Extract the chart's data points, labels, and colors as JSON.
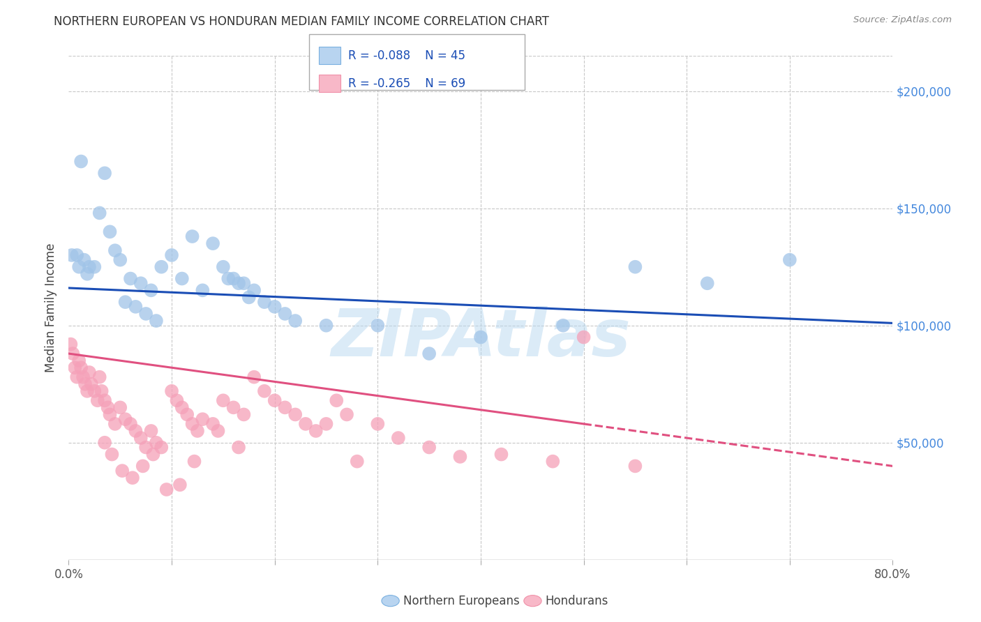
{
  "title": "NORTHERN EUROPEAN VS HONDURAN MEDIAN FAMILY INCOME CORRELATION CHART",
  "source": "Source: ZipAtlas.com",
  "ylabel": "Median Family Income",
  "yticks": [
    0,
    50000,
    100000,
    150000,
    200000
  ],
  "ytick_labels": [
    "",
    "$50,000",
    "$100,000",
    "$150,000",
    "$200,000"
  ],
  "xlim": [
    0.0,
    80.0
  ],
  "ylim": [
    0,
    215000
  ],
  "background_color": "#ffffff",
  "grid_color": "#c8c8c8",
  "watermark": "ZIPAtlas",
  "watermark_color": "#b8d8f0",
  "blue_color": "#a0c4e8",
  "blue_line_color": "#1a4db5",
  "pink_color": "#f5a0b8",
  "pink_line_color": "#e05080",
  "blue_line_x0": 0,
  "blue_line_y0": 116000,
  "blue_line_x1": 80,
  "blue_line_y1": 101000,
  "pink_line_x0": 0,
  "pink_line_y0": 88000,
  "pink_line_x1": 50,
  "pink_line_y1": 58000,
  "pink_dash_x0": 50,
  "pink_dash_y0": 58000,
  "pink_dash_x1": 80,
  "pink_dash_y1": 40000,
  "blue_x": [
    1.2,
    3.5,
    0.3,
    0.8,
    1.5,
    2.0,
    2.5,
    1.0,
    1.8,
    3.0,
    4.0,
    4.5,
    5.0,
    6.0,
    7.0,
    8.0,
    9.0,
    10.0,
    11.0,
    13.0,
    15.0,
    16.0,
    17.0,
    18.0,
    19.0,
    20.0,
    21.0,
    22.0,
    15.5,
    16.5,
    17.5,
    25.0,
    30.0,
    35.0,
    40.0,
    48.0,
    55.0,
    62.0,
    70.0,
    5.5,
    6.5,
    7.5,
    8.5,
    12.0,
    14.0
  ],
  "blue_y": [
    170000,
    165000,
    130000,
    130000,
    128000,
    125000,
    125000,
    125000,
    122000,
    148000,
    140000,
    132000,
    128000,
    120000,
    118000,
    115000,
    125000,
    130000,
    120000,
    115000,
    125000,
    120000,
    118000,
    115000,
    110000,
    108000,
    105000,
    102000,
    120000,
    118000,
    112000,
    100000,
    100000,
    88000,
    95000,
    100000,
    125000,
    118000,
    128000,
    110000,
    108000,
    105000,
    102000,
    138000,
    135000
  ],
  "pink_x": [
    0.2,
    0.4,
    0.6,
    0.8,
    1.0,
    1.2,
    1.4,
    1.6,
    1.8,
    2.0,
    2.2,
    2.5,
    2.8,
    3.0,
    3.2,
    3.5,
    3.8,
    4.0,
    4.5,
    5.0,
    5.5,
    6.0,
    6.5,
    7.0,
    7.5,
    8.0,
    8.5,
    9.0,
    10.0,
    10.5,
    11.0,
    11.5,
    12.0,
    12.5,
    13.0,
    14.0,
    15.0,
    16.0,
    17.0,
    18.0,
    19.0,
    20.0,
    21.0,
    22.0,
    23.0,
    24.0,
    25.0,
    26.0,
    27.0,
    28.0,
    30.0,
    32.0,
    35.0,
    38.0,
    42.0,
    47.0,
    50.0,
    55.0,
    3.5,
    4.2,
    5.2,
    6.2,
    7.2,
    8.2,
    9.5,
    10.8,
    12.2,
    14.5,
    16.5
  ],
  "pink_y": [
    92000,
    88000,
    82000,
    78000,
    85000,
    82000,
    78000,
    75000,
    72000,
    80000,
    75000,
    72000,
    68000,
    78000,
    72000,
    68000,
    65000,
    62000,
    58000,
    65000,
    60000,
    58000,
    55000,
    52000,
    48000,
    55000,
    50000,
    48000,
    72000,
    68000,
    65000,
    62000,
    58000,
    55000,
    60000,
    58000,
    68000,
    65000,
    62000,
    78000,
    72000,
    68000,
    65000,
    62000,
    58000,
    55000,
    58000,
    68000,
    62000,
    42000,
    58000,
    52000,
    48000,
    44000,
    45000,
    42000,
    95000,
    40000,
    50000,
    45000,
    38000,
    35000,
    40000,
    45000,
    30000,
    32000,
    42000,
    55000,
    48000
  ]
}
